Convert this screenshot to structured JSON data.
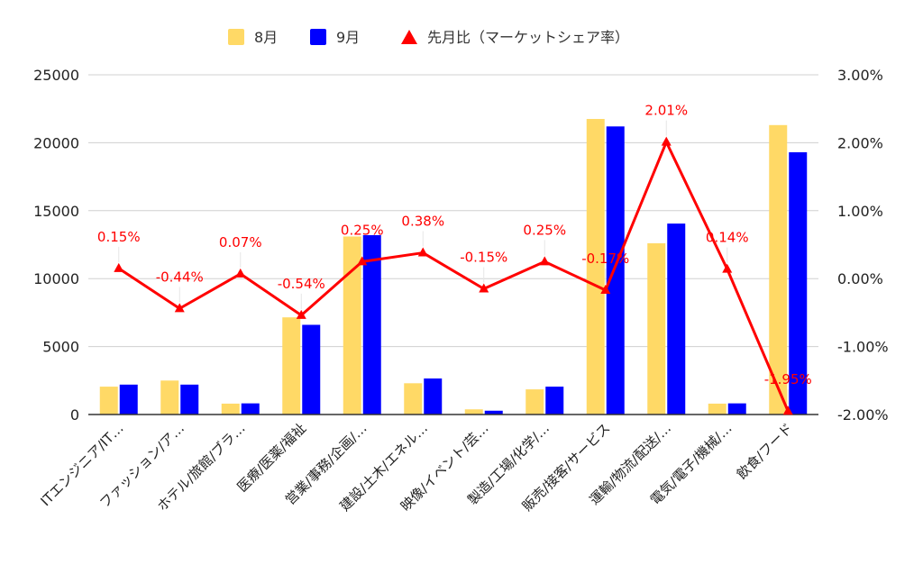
{
  "chart_data": {
    "type": "bar",
    "categories": [
      "ITエンジニア/IT…",
      "ファッション/ア…",
      "ホテル/旅館/ブラ…",
      "医療/医薬/福祉",
      "営業/事務/企画/…",
      "建設/土木/エネル…",
      "映像/イベント/芸…",
      "製造/工場/化学/…",
      "販売/接客/サービス",
      "運輸/物流/配送/…",
      "電気/電子/機械/…",
      "飲食/フード"
    ],
    "series": [
      {
        "name": "8月",
        "type": "bar",
        "axis": "left",
        "color": "#FFD966",
        "values": [
          2050,
          2500,
          800,
          7150,
          13100,
          2300,
          380,
          1850,
          21750,
          12600,
          800,
          21300
        ]
      },
      {
        "name": "9月",
        "type": "bar",
        "axis": "left",
        "color": "#0000FF",
        "values": [
          2200,
          2200,
          820,
          6600,
          13200,
          2650,
          280,
          2050,
          21200,
          14050,
          820,
          19300
        ]
      },
      {
        "name": "先月比（マーケットシェア率）",
        "type": "line",
        "axis": "right",
        "color": "#FF0000",
        "marker": "triangle",
        "values": [
          0.15,
          -0.44,
          0.07,
          -0.54,
          0.25,
          0.38,
          -0.15,
          0.25,
          -0.17,
          2.01,
          0.14,
          -1.95
        ],
        "labels": [
          "0.15%",
          "-0.44%",
          "0.07%",
          "-0.54%",
          "0.25%",
          "0.38%",
          "-0.15%",
          "0.25%",
          "-0.17%",
          "2.01%",
          "0.14%",
          "-1.95%"
        ]
      }
    ],
    "ylim": [
      0,
      25000
    ],
    "yticks": [
      "0",
      "5000",
      "10000",
      "15000",
      "20000",
      "25000"
    ],
    "y2lim": [
      -2,
      3
    ],
    "y2ticks": [
      "-2.00%",
      "-1.00%",
      "0.00%",
      "1.00%",
      "2.00%",
      "3.00%"
    ],
    "grid": true,
    "legend_position": "top"
  }
}
